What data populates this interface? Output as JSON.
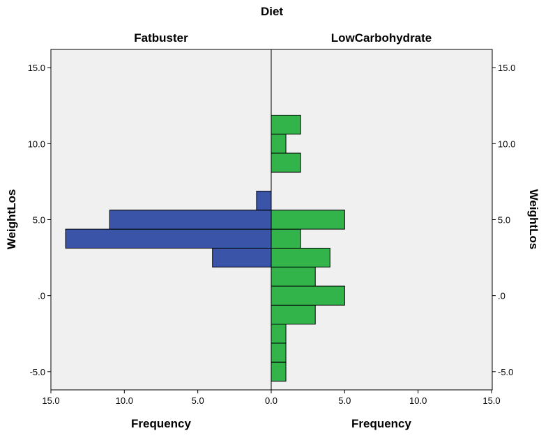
{
  "chart_data": {
    "type": "bar",
    "orientation": "horizontal",
    "title": "Diet",
    "ylabel": "WeightLos",
    "xlabel": "Frequency",
    "y_ticks": [
      "15.0",
      "10.0",
      "5.0",
      ".0",
      "-5.0"
    ],
    "x_ticks": [
      "15.0",
      "10.0",
      "5.0",
      "0.0"
    ],
    "x_ticks_right": [
      "0.0",
      "5.0",
      "10.0",
      "15.0"
    ],
    "ylim": [
      -6.2,
      16.2
    ],
    "xlim": [
      0,
      15
    ],
    "bin_width": 1.25,
    "grid": false,
    "series": [
      {
        "name": "Fatbuster",
        "side": "left",
        "color": "#3a55a8",
        "bins": [
          {
            "y": 2.5,
            "count": 4
          },
          {
            "y": 3.75,
            "count": 14
          },
          {
            "y": 5.0,
            "count": 11
          },
          {
            "y": 6.25,
            "count": 1
          }
        ]
      },
      {
        "name": "LowCarbohydrate",
        "side": "right",
        "color": "#33b44a",
        "bins": [
          {
            "y": -5.0,
            "count": 1
          },
          {
            "y": -3.75,
            "count": 1
          },
          {
            "y": -2.5,
            "count": 1
          },
          {
            "y": -1.25,
            "count": 3
          },
          {
            "y": 0.0,
            "count": 5
          },
          {
            "y": 1.25,
            "count": 3
          },
          {
            "y": 2.5,
            "count": 4
          },
          {
            "y": 3.75,
            "count": 2
          },
          {
            "y": 5.0,
            "count": 5
          },
          {
            "y": 8.75,
            "count": 2
          },
          {
            "y": 10.0,
            "count": 1
          },
          {
            "y": 11.25,
            "count": 2
          }
        ]
      }
    ]
  }
}
